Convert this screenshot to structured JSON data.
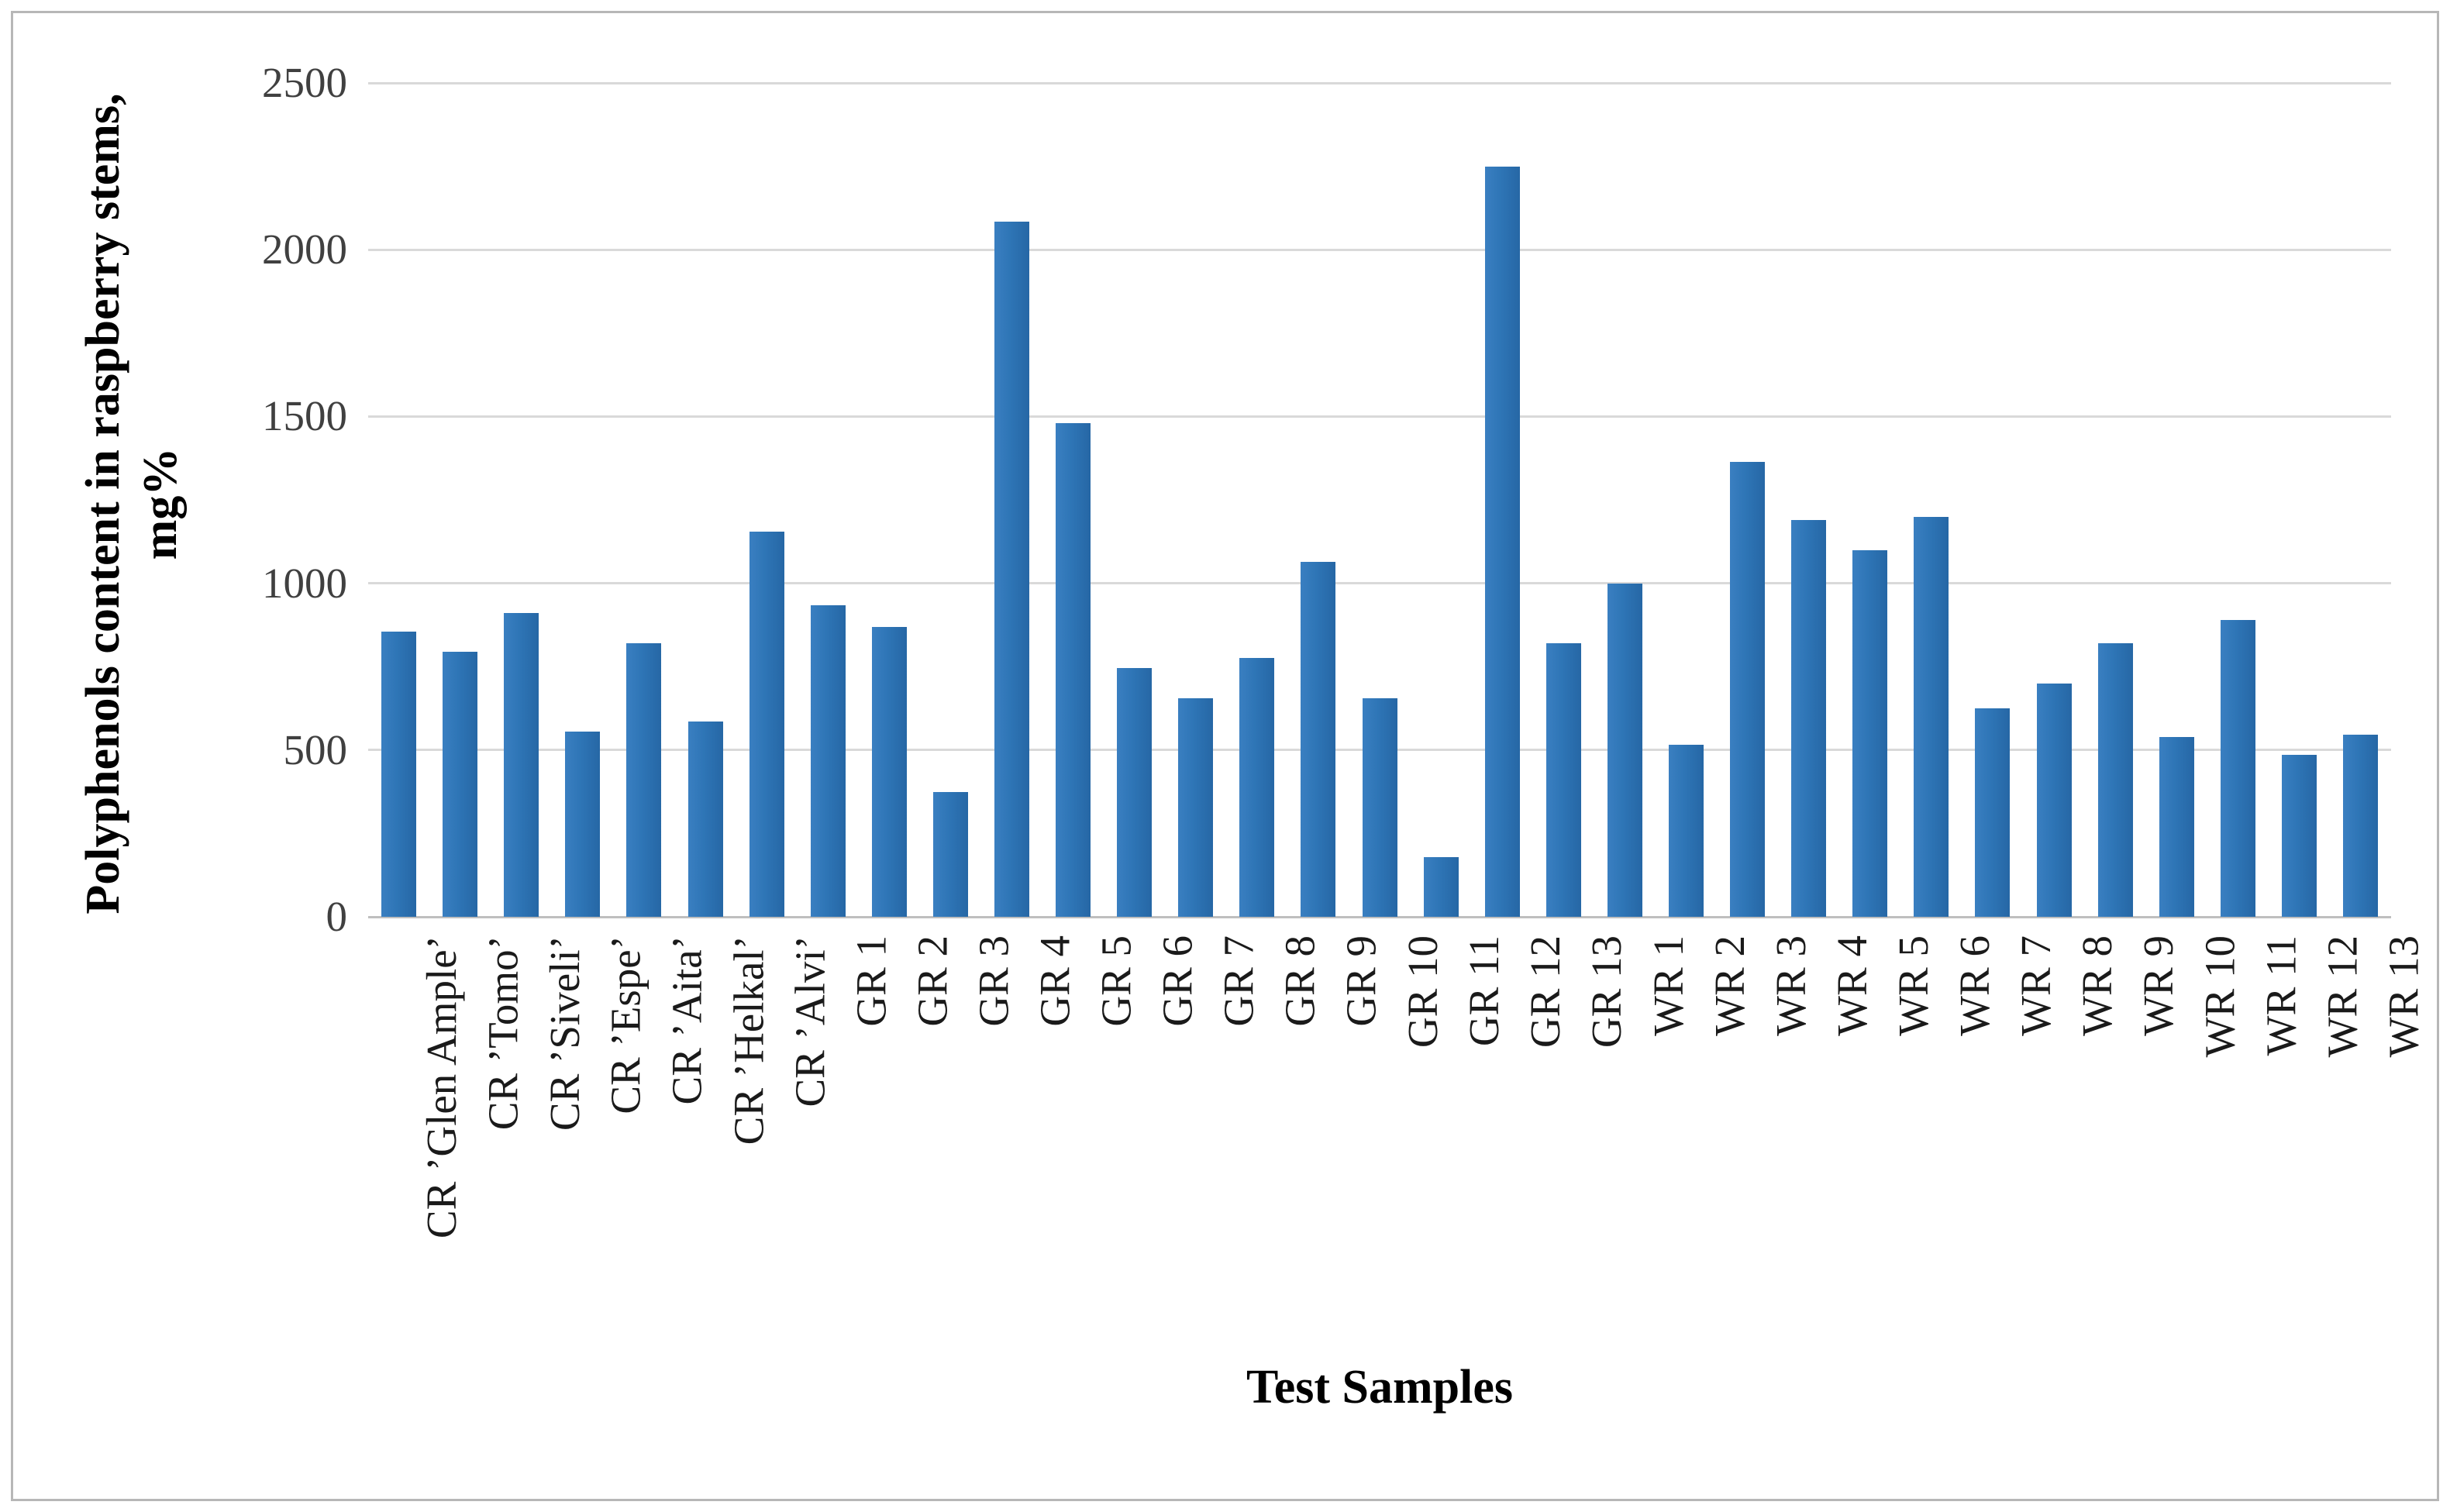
{
  "axes": {
    "y_title_line1": "Polyphenols content in raspberry stems,",
    "y_title_line2": "mg%",
    "x_title": "Test Samples"
  },
  "chart_data": {
    "type": "bar",
    "title": "",
    "xlabel": "Test Samples",
    "ylabel": "Polyphenols content in raspberry stems, mg%",
    "ylim": [
      0,
      2500
    ],
    "yticks": [
      0,
      500,
      1000,
      1500,
      2000,
      2500
    ],
    "grid": true,
    "legend": false,
    "bar_color": "#2e75b6",
    "categories": [
      "CR ’Glen Ample’",
      "CR ’Tomo’",
      "CR ’Siveli’",
      "CR ’Espe’",
      "CR ’Aita’",
      "CR ’Helkal’",
      "CR ’Alvi’",
      "GR 1",
      "GR 2",
      "GR 3",
      "GR 4",
      "GR 5",
      "GR 6",
      "GR 7",
      "GR 8",
      "GR 9",
      "GR 10",
      "GR 11",
      "GR 12",
      "GR 13",
      "WR 1",
      "WR 2",
      "WR 3",
      "WR 4",
      "WR 5",
      "WR 6",
      "WR 7",
      "WR 8",
      "WR 9",
      "WR 10",
      "WR 11",
      "WR 12",
      "WR 13"
    ],
    "values": [
      855,
      795,
      910,
      555,
      820,
      585,
      1155,
      935,
      870,
      375,
      2085,
      1480,
      745,
      655,
      775,
      1065,
      655,
      180,
      2250,
      820,
      1000,
      515,
      1365,
      1190,
      1100,
      1200,
      625,
      700,
      820,
      540,
      890,
      485,
      545
    ]
  },
  "colors": {
    "bar": "#2e75b6",
    "gridline": "#d9d9d9",
    "baseline": "#bfbfbf",
    "tick_text": "#404040",
    "label_text": "#1a1a1a",
    "title_text": "#000000",
    "border": "#b7b7b7",
    "background": "#ffffff"
  }
}
